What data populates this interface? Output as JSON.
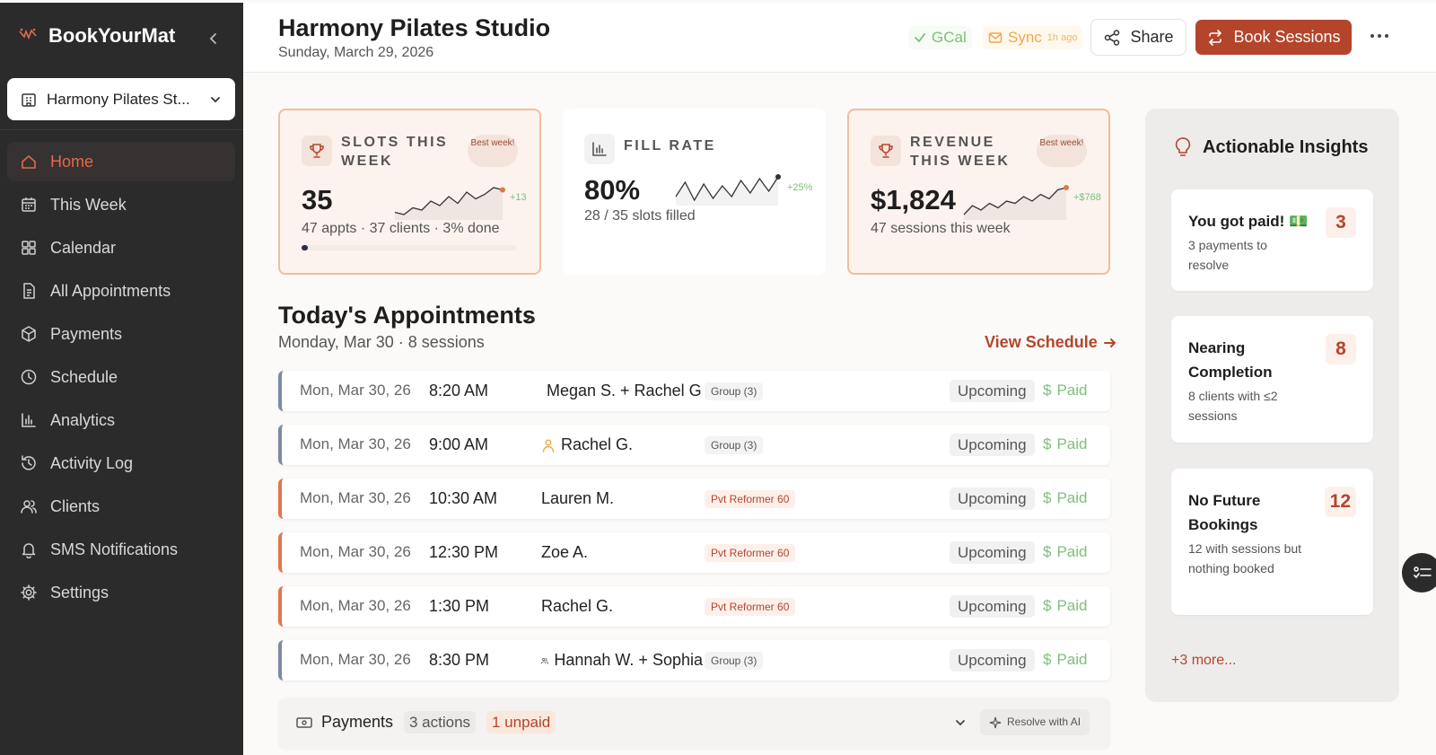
{
  "app": {
    "name": "BookYourMat"
  },
  "studio_selector": {
    "label": "Harmony Pilates St..."
  },
  "nav": [
    {
      "label": "Home",
      "icon": "home-icon",
      "active": true
    },
    {
      "label": "This Week",
      "icon": "calendar-week-icon"
    },
    {
      "label": "Calendar",
      "icon": "grid-icon"
    },
    {
      "label": "All Appointments",
      "icon": "document-icon"
    },
    {
      "label": "Payments",
      "icon": "package-icon"
    },
    {
      "label": "Schedule",
      "icon": "clock-icon"
    },
    {
      "label": "Analytics",
      "icon": "bar-chart-icon"
    },
    {
      "label": "Activity Log",
      "icon": "history-icon"
    },
    {
      "label": "Clients",
      "icon": "users-icon"
    },
    {
      "label": "SMS Notifications",
      "icon": "bell-icon"
    },
    {
      "label": "Settings",
      "icon": "gear-icon"
    }
  ],
  "header": {
    "title": "Harmony Pilates Studio",
    "date": "Sunday, March 29, 2026",
    "gcal_label": "GCal",
    "sync_label": "Sync",
    "sync_time": "1h ago",
    "share_label": "Share",
    "book_label": "Book Sessions"
  },
  "kpis": [
    {
      "label": "SLOTS THIS WEEK",
      "badge": "Best week!",
      "value": "35",
      "sub": "47 appts · 37 clients · 3% done",
      "delta": "+13",
      "progress": 0.03,
      "spark": [
        4,
        3,
        6,
        5,
        9,
        7,
        11,
        8,
        13,
        10,
        12,
        15,
        14
      ]
    },
    {
      "label": "FILL RATE",
      "value": "80%",
      "sub": "28 / 35 slots filled",
      "delta": "+25%",
      "spark": [
        6,
        14,
        4,
        13,
        5,
        12,
        6,
        15,
        8,
        16,
        9,
        17
      ]
    },
    {
      "label": "REVENUE THIS WEEK",
      "badge": "Best week!",
      "value": "$1,824",
      "sub": "47 sessions this week",
      "delta": "+$768",
      "spark": [
        3,
        7,
        5,
        8,
        6,
        9,
        8,
        11,
        9,
        12,
        10,
        14,
        15
      ]
    }
  ],
  "today": {
    "title": "Today's Appointments",
    "subtitle": "Monday, Mar 30 · 8 sessions",
    "view_schedule": "View Schedule",
    "rows": [
      {
        "date": "Mon, Mar 30, 26",
        "time": "8:20 AM",
        "client": "Megan S. + Rachel G.",
        "client_icon": "group",
        "type": "Group (3)",
        "kind": "group",
        "status": "Upcoming",
        "paid": "Paid"
      },
      {
        "date": "Mon, Mar 30, 26",
        "time": "9:00 AM",
        "client": "Rachel G.",
        "client_icon": "single",
        "type": "Group (3)",
        "kind": "group",
        "status": "Upcoming",
        "paid": "Paid"
      },
      {
        "date": "Mon, Mar 30, 26",
        "time": "10:30 AM",
        "client": "Lauren M.",
        "client_icon": "",
        "type": "Pvt Reformer 60",
        "kind": "private",
        "status": "Upcoming",
        "paid": "Paid"
      },
      {
        "date": "Mon, Mar 30, 26",
        "time": "12:30 PM",
        "client": "Zoe A.",
        "client_icon": "",
        "type": "Pvt Reformer 60",
        "kind": "private",
        "status": "Upcoming",
        "paid": "Paid"
      },
      {
        "date": "Mon, Mar 30, 26",
        "time": "1:30 PM",
        "client": "Rachel G.",
        "client_icon": "",
        "type": "Pvt Reformer 60",
        "kind": "private",
        "status": "Upcoming",
        "paid": "Paid"
      },
      {
        "date": "Mon, Mar 30, 26",
        "time": "8:30 PM",
        "client": "Hannah W. + Sophia",
        "client_icon": "group",
        "type": "Group (3)",
        "kind": "group",
        "status": "Upcoming",
        "paid": "Paid"
      }
    ]
  },
  "payments_bar": {
    "label": "Payments",
    "actions": "3 actions",
    "unpaid": "1 unpaid",
    "ai_label": "Resolve with AI"
  },
  "insights": {
    "title": "Actionable Insights",
    "cards": [
      {
        "title": "You got paid! 💵",
        "sub": "3 payments to resolve",
        "count": "3"
      },
      {
        "title": "Nearing Completion",
        "sub": "8 clients with ≤2 sessions",
        "count": "8"
      },
      {
        "title": "No Future Bookings",
        "sub": "12 with sessions but nothing booked",
        "count": "12"
      }
    ],
    "more": "+3 more..."
  },
  "colors": {
    "accent": "#b4452b",
    "sidebar": "#2b2b2b",
    "paid": "#7cc07a",
    "sync": "#eda94a"
  }
}
